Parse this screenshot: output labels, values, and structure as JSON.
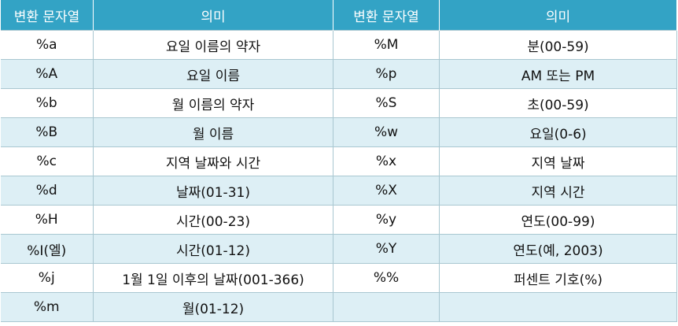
{
  "headers": [
    "변환 문자열",
    "의미",
    "변환 문자열",
    "의미"
  ],
  "rows": [
    [
      "%a",
      "요일 이름의 약자",
      "%M",
      "분(00-59)"
    ],
    [
      "%A",
      "요일 이름",
      "%p",
      "AM 또는 PM"
    ],
    [
      "%b",
      "월 이름의 약자",
      "%S",
      "초(00-59)"
    ],
    [
      "%B",
      "월 이름",
      "%w",
      "요일(0-6)"
    ],
    [
      "%c",
      "지역 날짜와 시간",
      "%x",
      "지역 날짜"
    ],
    [
      "%d",
      "날짜(01-31)",
      "%X",
      "지역 시간"
    ],
    [
      "%H",
      "시간(00-23)",
      "%y",
      "연도(00-99)"
    ],
    [
      "%I(엘)",
      "시간(01-12)",
      "%Y",
      "연도(예, 2003)"
    ],
    [
      "%j",
      "1월 1일 이후의 날짜(001-366)",
      "%%",
      "퍼센트 기호(%)"
    ],
    [
      "%m",
      "월(01-12)",
      "",
      ""
    ]
  ],
  "colors": {
    "header_bg": "#33a3c5",
    "header_text": "#ffffff",
    "stripe_bg": "#ddeff5",
    "border": "#a9c7d1"
  }
}
